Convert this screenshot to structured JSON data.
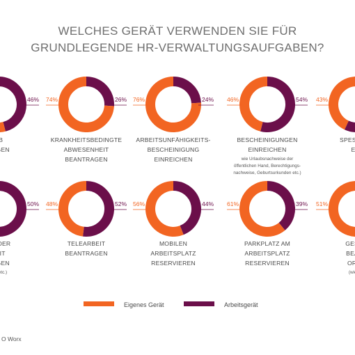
{
  "colors": {
    "own": "#f26522",
    "work": "#6b0f4a",
    "title": "#6e6e6e",
    "text": "#4a4a4a"
  },
  "chart_data": {
    "type": "pie",
    "variant": "donut-grid",
    "title_lines": [
      "WELCHES GERÄT VERWENDEN SIE FÜR",
      "GRUNDLEGENDE HR-VERWALTUNGSAUFGABEN?"
    ],
    "legend": [
      {
        "name": "Eigenes Gerät",
        "color": "#f26522"
      },
      {
        "name": "Arbeitsgerät",
        "color": "#6b0f4a"
      }
    ],
    "items": [
      {
        "left": "",
        "right": "46%",
        "own": 54,
        "work": 46,
        "label": [
          "UB",
          "RAGEN"
        ],
        "sub": []
      },
      {
        "left": "74%",
        "right": "26%",
        "own": 74,
        "work": 26,
        "label": [
          "KRANKHEITSBEDINGTE",
          "ABWESENHEIT",
          "BEANTRAGEN"
        ],
        "sub": []
      },
      {
        "left": "76%",
        "right": "24%",
        "own": 76,
        "work": 24,
        "label": [
          "ARBEITSUNFÄHIGKEITS-",
          "BESCHEINIGUNG",
          "EINREICHEN"
        ],
        "sub": []
      },
      {
        "left": "46%",
        "right": "54%",
        "own": 46,
        "work": 54,
        "label": [
          "BESCHEINIGUNGEN",
          "EINREICHEN"
        ],
        "sub": [
          "wie Urlaubsnachweise der",
          "öffentlichen Hand, Berechtigungs-",
          "nachweise, Geburtsurkunden etc.)"
        ]
      },
      {
        "left": "43%",
        "right": "",
        "own": 43,
        "work": 57,
        "label": [
          "SPESENAB",
          "EIN"
        ],
        "sub": []
      },
      {
        "left": "",
        "right": "50%",
        "own": 50,
        "work": 50,
        "label": [
          "NG DER",
          "ZEIT",
          "RAGEN"
        ],
        "sub": [
          "zeit etc.)"
        ]
      },
      {
        "left": "48%",
        "right": "52%",
        "own": 48,
        "work": 52,
        "label": [
          "TELEARBEIT",
          "BEANTRAGEN"
        ],
        "sub": []
      },
      {
        "left": "56%",
        "right": "44%",
        "own": 56,
        "work": 44,
        "label": [
          "MOBILEN",
          "ARBEITSPLATZ",
          "RESERVIEREN"
        ],
        "sub": []
      },
      {
        "left": "61%",
        "right": "39%",
        "own": 61,
        "work": 39,
        "label": [
          "PARKPLATZ AM",
          "ARBEITSPLATZ",
          "RESERVIEREN"
        ],
        "sub": []
      },
      {
        "left": "51%",
        "right": "",
        "own": 51,
        "work": 49,
        "label": [
          "GESCH",
          "BEANT",
          "ORGA"
        ],
        "sub": [
          "(wie Flü"
        ]
      }
    ]
  },
  "source": "O Worx"
}
